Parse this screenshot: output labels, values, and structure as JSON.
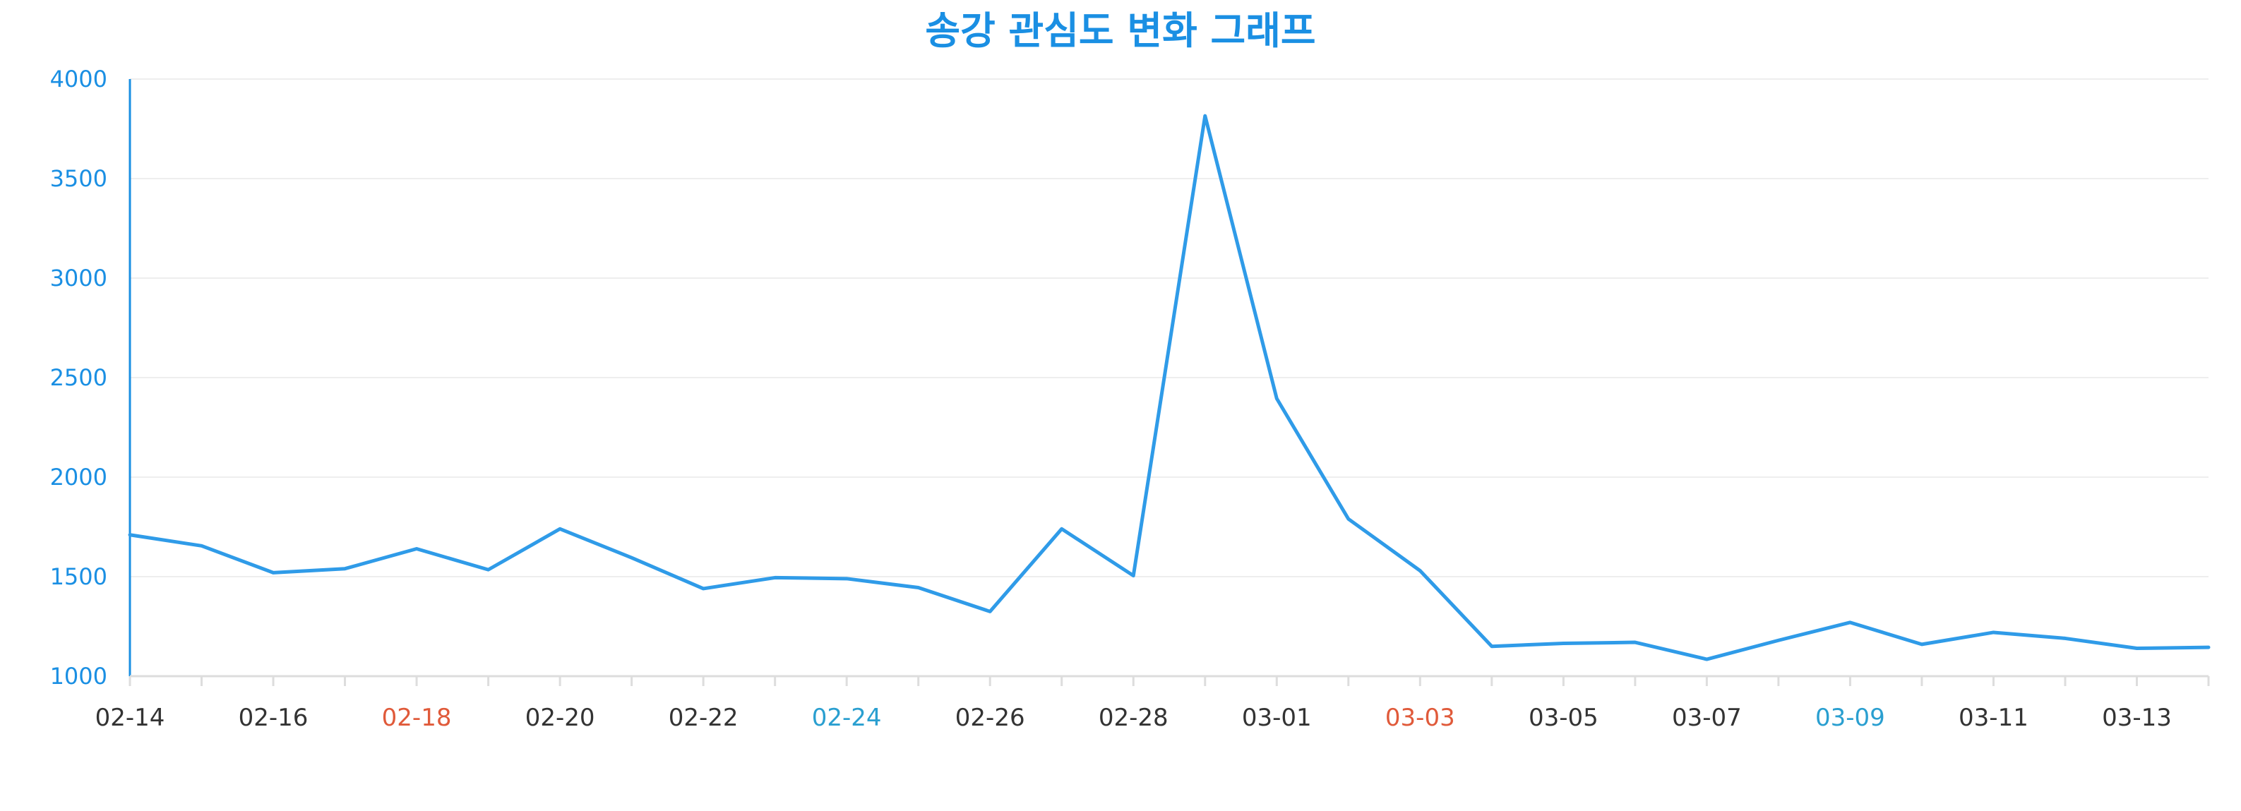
{
  "colors": {
    "title": "#1a8fe3",
    "line": "#2f9be8",
    "y_axis": "#1a8fe3",
    "y_tick_text": "#1a8fe3",
    "x_axis": "#dddddd",
    "grid": "#eeeeee",
    "x_tick_default": "#333333",
    "x_tick_red": "#e05a3a",
    "x_tick_blue": "#2a9fd0"
  },
  "chart_data": {
    "type": "line",
    "title": "송강 관심도 변화 그래프",
    "xlabel": "",
    "ylabel": "",
    "ylim": [
      1000,
      4000
    ],
    "yticks": [
      1000,
      1500,
      2000,
      2500,
      3000,
      3500,
      4000
    ],
    "grid": true,
    "legend": "none",
    "x": [
      "02-14",
      "02-15",
      "02-16",
      "02-17",
      "02-18",
      "02-19",
      "02-20",
      "02-21",
      "02-22",
      "02-23",
      "02-24",
      "02-25",
      "02-26",
      "02-27",
      "02-28",
      "02-29",
      "03-01",
      "03-02",
      "03-03",
      "03-04",
      "03-05",
      "03-06",
      "03-07",
      "03-08",
      "03-09",
      "03-10",
      "03-11",
      "03-12",
      "03-13",
      "03-14"
    ],
    "x_tick_labels": [
      {
        "label": "02-14",
        "style": "default"
      },
      {
        "label": "02-16",
        "style": "default"
      },
      {
        "label": "02-18",
        "style": "red"
      },
      {
        "label": "02-20",
        "style": "default"
      },
      {
        "label": "02-22",
        "style": "default"
      },
      {
        "label": "02-24",
        "style": "blue"
      },
      {
        "label": "02-26",
        "style": "default"
      },
      {
        "label": "02-28",
        "style": "default"
      },
      {
        "label": "03-01",
        "style": "default"
      },
      {
        "label": "03-03",
        "style": "red"
      },
      {
        "label": "03-05",
        "style": "default"
      },
      {
        "label": "03-07",
        "style": "default"
      },
      {
        "label": "03-09",
        "style": "blue"
      },
      {
        "label": "03-11",
        "style": "default"
      },
      {
        "label": "03-13",
        "style": "default"
      }
    ],
    "series": [
      {
        "values": [
          1710,
          1655,
          1520,
          1540,
          1640,
          1535,
          1740,
          1595,
          1440,
          1495,
          1490,
          1445,
          1325,
          1740,
          1505,
          3815,
          2395,
          1790,
          1530,
          1150,
          1165,
          1170,
          1085,
          1180,
          1270,
          1160,
          1220,
          1190,
          1140,
          1145
        ]
      }
    ]
  }
}
